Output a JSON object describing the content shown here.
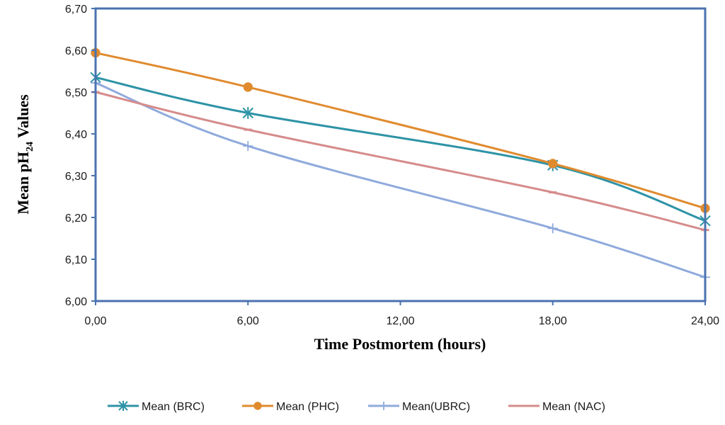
{
  "chart_data": {
    "type": "line",
    "xlabel": "Time Postmortem (hours)",
    "ylabel": {
      "main": "Mean pH",
      "sub": "24",
      "tail": " Values"
    },
    "x_ticks": [
      "0,00",
      "6,00",
      "12,00",
      "18,00",
      "24,00"
    ],
    "y_ticks": [
      "6,00",
      "6,10",
      "6,20",
      "6,30",
      "6,40",
      "6,50",
      "6,60",
      "6,70"
    ],
    "xlim": [
      0,
      24
    ],
    "ylim": [
      6.0,
      6.7
    ],
    "grid": false,
    "legend_position": "bottom",
    "series": [
      {
        "name": "Mean (BRC)",
        "color": "#2e93a6",
        "marker": "asterisk",
        "x": [
          0,
          6,
          18,
          24
        ],
        "values": [
          6.535,
          6.45,
          6.325,
          6.192
        ]
      },
      {
        "name": "Mean (PHC)",
        "color": "#e08a2e",
        "marker": "circle",
        "x": [
          0,
          6,
          18,
          24
        ],
        "values": [
          6.594,
          6.512,
          6.329,
          6.222
        ]
      },
      {
        "name": "Mean(UBRC)",
        "color": "#8faadc",
        "marker": "plus",
        "x": [
          0,
          6,
          18,
          24
        ],
        "values": [
          6.522,
          6.371,
          6.174,
          6.057
        ]
      },
      {
        "name": "Mean (NAC)",
        "color": "#d68b8b",
        "marker": "dash",
        "x": [
          0,
          6,
          18,
          24
        ],
        "values": [
          6.5,
          6.41,
          6.26,
          6.17
        ]
      }
    ]
  }
}
